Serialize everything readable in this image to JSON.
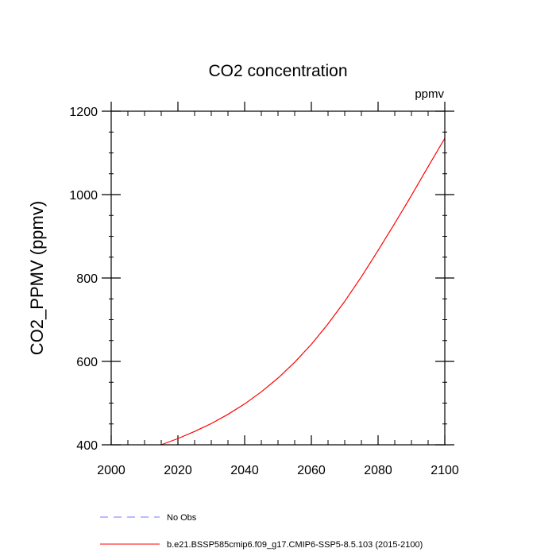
{
  "chart_data": {
    "type": "line",
    "title": "CO2 concentration",
    "units_label": "ppmv",
    "xlabel": "",
    "ylabel": "CO2_PPMV  (ppmv)",
    "xlim": [
      2000,
      2100
    ],
    "ylim": [
      400,
      1200
    ],
    "x_ticks": [
      2000,
      2020,
      2040,
      2060,
      2080,
      2100
    ],
    "y_ticks": [
      400,
      600,
      800,
      1000,
      1200
    ],
    "x_minor_step": 5,
    "y_minor_step": 50,
    "series": [
      {
        "name": "b.e21.BSSP585cmip6.f09_g17.CMIP6-SSP5-8.5.103 (2015-2100)",
        "color": "#ff0000",
        "dash": "solid",
        "x": [
          2015,
          2020,
          2025,
          2030,
          2035,
          2040,
          2045,
          2050,
          2055,
          2060,
          2065,
          2070,
          2075,
          2080,
          2085,
          2090,
          2095,
          2100
        ],
        "y": [
          400,
          415,
          432,
          451,
          473,
          498,
          527,
          560,
          598,
          641,
          690,
          744,
          803,
          866,
          931,
          998,
          1067,
          1135
        ]
      }
    ],
    "legend": [
      {
        "label": "No Obs",
        "color": "#7777ff",
        "dash": "dashed"
      },
      {
        "label": "b.e21.BSSP585cmip6.f09_g17.CMIP6-SSP5-8.5.103 (2015-2100)",
        "color": "#ff0000",
        "dash": "solid"
      }
    ]
  }
}
